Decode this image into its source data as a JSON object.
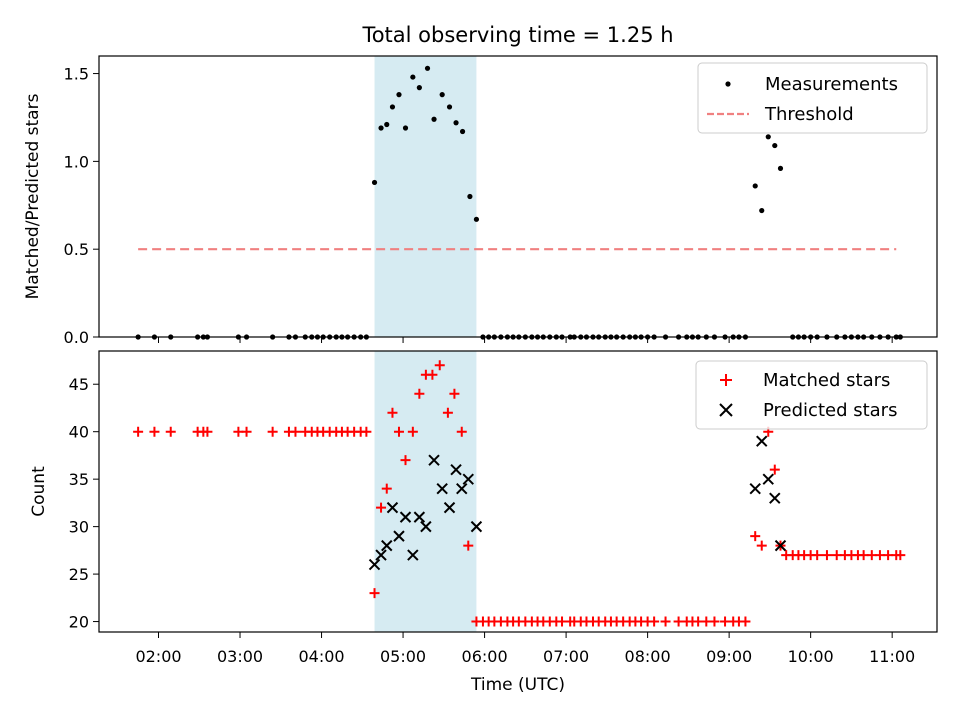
{
  "chart_data": {
    "type": "scatter",
    "title": "Total observing time = 1.25 h",
    "xlabel": "Time (UTC)",
    "x_unit": "hours (UTC)",
    "x_tick_values": [
      2,
      3,
      4,
      5,
      6,
      7,
      8,
      9,
      10,
      11
    ],
    "x_tick_labels": [
      "02:00",
      "03:00",
      "04:00",
      "05:00",
      "06:00",
      "07:00",
      "08:00",
      "09:00",
      "10:00",
      "11:00"
    ],
    "xlim": [
      1.27,
      11.55
    ],
    "shaded_interval": [
      4.65,
      5.9
    ],
    "shade_color": "#add8e6",
    "top_panel": {
      "ylabel": "Matched/Predicted stars",
      "ylim": [
        0.0,
        1.6
      ],
      "y_tick_values": [
        0.0,
        0.5,
        1.0,
        1.5
      ],
      "y_tick_labels": [
        "0.0",
        "0.5",
        "1.0",
        "1.5"
      ],
      "legend": {
        "placement": "upper right",
        "items": [
          {
            "label": "Measurements",
            "marker": "dot",
            "color": "#000000"
          },
          {
            "label": "Threshold",
            "marker": "dashed-line",
            "color": "#f08080"
          }
        ]
      },
      "threshold": {
        "value": 0.5,
        "x_range": [
          1.75,
          11.05
        ],
        "color": "#f08080"
      },
      "measurements": [
        [
          1.75,
          0
        ],
        [
          1.95,
          0
        ],
        [
          2.15,
          0
        ],
        [
          2.48,
          0
        ],
        [
          2.55,
          0
        ],
        [
          2.6,
          0
        ],
        [
          2.98,
          0
        ],
        [
          3.08,
          0
        ],
        [
          3.4,
          0
        ],
        [
          3.6,
          0
        ],
        [
          3.68,
          0
        ],
        [
          3.8,
          0
        ],
        [
          3.88,
          0
        ],
        [
          3.95,
          0
        ],
        [
          4.02,
          0
        ],
        [
          4.1,
          0
        ],
        [
          4.18,
          0
        ],
        [
          4.25,
          0
        ],
        [
          4.32,
          0
        ],
        [
          4.4,
          0
        ],
        [
          4.48,
          0
        ],
        [
          4.55,
          0
        ],
        [
          4.65,
          0.88
        ],
        [
          4.73,
          1.19
        ],
        [
          4.8,
          1.21
        ],
        [
          4.87,
          1.31
        ],
        [
          4.95,
          1.38
        ],
        [
          5.03,
          1.19
        ],
        [
          5.12,
          1.48
        ],
        [
          5.2,
          1.42
        ],
        [
          5.3,
          1.53
        ],
        [
          5.38,
          1.24
        ],
        [
          5.48,
          1.38
        ],
        [
          5.57,
          1.31
        ],
        [
          5.65,
          1.22
        ],
        [
          5.73,
          1.17
        ],
        [
          5.82,
          0.8
        ],
        [
          5.9,
          0.67
        ],
        [
          5.98,
          0
        ],
        [
          6.05,
          0
        ],
        [
          6.12,
          0
        ],
        [
          6.2,
          0
        ],
        [
          6.28,
          0
        ],
        [
          6.35,
          0
        ],
        [
          6.42,
          0
        ],
        [
          6.5,
          0
        ],
        [
          6.58,
          0
        ],
        [
          6.65,
          0
        ],
        [
          6.72,
          0
        ],
        [
          6.8,
          0
        ],
        [
          6.88,
          0
        ],
        [
          6.95,
          0
        ],
        [
          7.05,
          0
        ],
        [
          7.1,
          0
        ],
        [
          7.18,
          0
        ],
        [
          7.25,
          0
        ],
        [
          7.33,
          0
        ],
        [
          7.4,
          0
        ],
        [
          7.48,
          0
        ],
        [
          7.55,
          0
        ],
        [
          7.62,
          0
        ],
        [
          7.7,
          0
        ],
        [
          7.78,
          0
        ],
        [
          7.85,
          0
        ],
        [
          7.92,
          0
        ],
        [
          8.0,
          0
        ],
        [
          8.08,
          0
        ],
        [
          8.22,
          0
        ],
        [
          8.38,
          0
        ],
        [
          8.48,
          0
        ],
        [
          8.55,
          0
        ],
        [
          8.62,
          0
        ],
        [
          8.72,
          0
        ],
        [
          8.82,
          0
        ],
        [
          8.95,
          0
        ],
        [
          9.05,
          0
        ],
        [
          9.12,
          0
        ],
        [
          9.2,
          0
        ],
        [
          9.32,
          0.86
        ],
        [
          9.4,
          0.72
        ],
        [
          9.48,
          1.14
        ],
        [
          9.56,
          1.09
        ],
        [
          9.63,
          0.96
        ],
        [
          9.78,
          0
        ],
        [
          9.85,
          0
        ],
        [
          9.92,
          0
        ],
        [
          10.0,
          0
        ],
        [
          10.08,
          0
        ],
        [
          10.2,
          0
        ],
        [
          10.32,
          0
        ],
        [
          10.42,
          0
        ],
        [
          10.5,
          0
        ],
        [
          10.58,
          0
        ],
        [
          10.65,
          0
        ],
        [
          10.75,
          0
        ],
        [
          10.85,
          0
        ],
        [
          10.95,
          0
        ],
        [
          11.05,
          0
        ],
        [
          11.1,
          0
        ]
      ]
    },
    "bottom_panel": {
      "ylabel": "Count",
      "ylim": [
        18.9,
        48.5
      ],
      "y_tick_values": [
        20,
        25,
        30,
        35,
        40,
        45
      ],
      "y_tick_labels": [
        "20",
        "25",
        "30",
        "35",
        "40",
        "45"
      ],
      "legend": {
        "placement": "upper right",
        "items": [
          {
            "label": "Matched stars",
            "marker": "plus",
            "color": "#ff0000"
          },
          {
            "label": "Predicted stars",
            "marker": "x",
            "color": "#000000"
          }
        ]
      },
      "series": [
        {
          "name": "Matched stars",
          "marker": "plus",
          "color": "#ff0000",
          "points": [
            [
              1.75,
              40
            ],
            [
              1.95,
              40
            ],
            [
              2.15,
              40
            ],
            [
              2.48,
              40
            ],
            [
              2.55,
              40
            ],
            [
              2.6,
              40
            ],
            [
              2.98,
              40
            ],
            [
              3.08,
              40
            ],
            [
              3.4,
              40
            ],
            [
              3.6,
              40
            ],
            [
              3.68,
              40
            ],
            [
              3.8,
              40
            ],
            [
              3.88,
              40
            ],
            [
              3.95,
              40
            ],
            [
              4.02,
              40
            ],
            [
              4.1,
              40
            ],
            [
              4.18,
              40
            ],
            [
              4.25,
              40
            ],
            [
              4.32,
              40
            ],
            [
              4.4,
              40
            ],
            [
              4.48,
              40
            ],
            [
              4.55,
              40
            ],
            [
              4.65,
              23
            ],
            [
              4.73,
              32
            ],
            [
              4.8,
              34
            ],
            [
              4.87,
              42
            ],
            [
              4.95,
              40
            ],
            [
              5.03,
              37
            ],
            [
              5.12,
              40
            ],
            [
              5.2,
              44
            ],
            [
              5.28,
              46
            ],
            [
              5.36,
              46
            ],
            [
              5.45,
              47
            ],
            [
              5.55,
              42
            ],
            [
              5.63,
              44
            ],
            [
              5.72,
              40
            ],
            [
              5.8,
              28
            ],
            [
              5.9,
              20
            ],
            [
              5.98,
              20
            ],
            [
              6.05,
              20
            ],
            [
              6.12,
              20
            ],
            [
              6.2,
              20
            ],
            [
              6.28,
              20
            ],
            [
              6.35,
              20
            ],
            [
              6.42,
              20
            ],
            [
              6.5,
              20
            ],
            [
              6.58,
              20
            ],
            [
              6.65,
              20
            ],
            [
              6.72,
              20
            ],
            [
              6.8,
              20
            ],
            [
              6.88,
              20
            ],
            [
              6.95,
              20
            ],
            [
              7.05,
              20
            ],
            [
              7.1,
              20
            ],
            [
              7.18,
              20
            ],
            [
              7.25,
              20
            ],
            [
              7.33,
              20
            ],
            [
              7.4,
              20
            ],
            [
              7.48,
              20
            ],
            [
              7.55,
              20
            ],
            [
              7.62,
              20
            ],
            [
              7.7,
              20
            ],
            [
              7.78,
              20
            ],
            [
              7.85,
              20
            ],
            [
              7.92,
              20
            ],
            [
              8.0,
              20
            ],
            [
              8.08,
              20
            ],
            [
              8.22,
              20
            ],
            [
              8.38,
              20
            ],
            [
              8.48,
              20
            ],
            [
              8.55,
              20
            ],
            [
              8.62,
              20
            ],
            [
              8.72,
              20
            ],
            [
              8.82,
              20
            ],
            [
              8.95,
              20
            ],
            [
              9.05,
              20
            ],
            [
              9.12,
              20
            ],
            [
              9.2,
              20
            ],
            [
              9.32,
              29
            ],
            [
              9.4,
              28
            ],
            [
              9.48,
              40
            ],
            [
              9.56,
              36
            ],
            [
              9.63,
              28
            ],
            [
              9.7,
              27
            ],
            [
              9.78,
              27
            ],
            [
              9.85,
              27
            ],
            [
              9.92,
              27
            ],
            [
              10.0,
              27
            ],
            [
              10.08,
              27
            ],
            [
              10.2,
              27
            ],
            [
              10.32,
              27
            ],
            [
              10.42,
              27
            ],
            [
              10.5,
              27
            ],
            [
              10.58,
              27
            ],
            [
              10.65,
              27
            ],
            [
              10.75,
              27
            ],
            [
              10.85,
              27
            ],
            [
              10.95,
              27
            ],
            [
              11.05,
              27
            ],
            [
              11.1,
              27
            ]
          ]
        },
        {
          "name": "Predicted stars",
          "marker": "x",
          "color": "#000000",
          "points": [
            [
              4.65,
              26
            ],
            [
              4.73,
              27
            ],
            [
              4.8,
              28
            ],
            [
              4.87,
              32
            ],
            [
              4.95,
              29
            ],
            [
              5.03,
              31
            ],
            [
              5.12,
              27
            ],
            [
              5.2,
              31
            ],
            [
              5.28,
              30
            ],
            [
              5.38,
              37
            ],
            [
              5.48,
              34
            ],
            [
              5.57,
              32
            ],
            [
              5.65,
              36
            ],
            [
              5.72,
              34
            ],
            [
              5.8,
              35
            ],
            [
              5.9,
              30
            ],
            [
              9.32,
              34
            ],
            [
              9.4,
              39
            ],
            [
              9.48,
              35
            ],
            [
              9.56,
              33
            ],
            [
              9.63,
              28
            ]
          ]
        }
      ]
    }
  }
}
